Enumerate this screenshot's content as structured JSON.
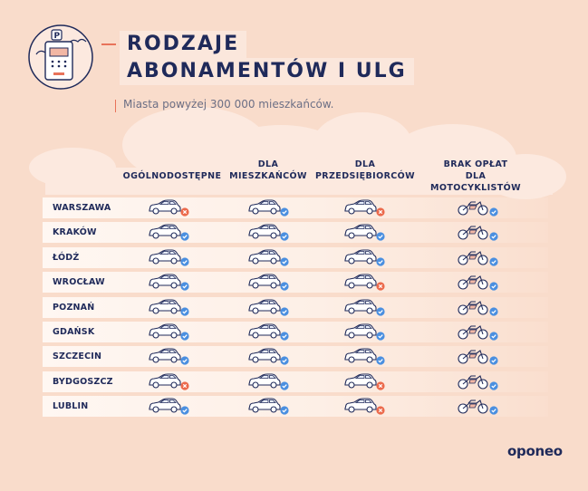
{
  "title": {
    "line1": "RODZAJE",
    "line2": "ABONAMENTÓW I ULG"
  },
  "subtitle": "Miasta powyżej 300 000 mieszkańców.",
  "columns": [
    {
      "line1": "OGÓLNODOSTĘPNE",
      "line2": ""
    },
    {
      "line1": "DLA",
      "line2": "MIESZKAŃCÓW"
    },
    {
      "line1": "DLA",
      "line2": "PRZEDSIĘBIORCÓW"
    },
    {
      "line1": "BRAK OPŁAT",
      "line2": "DLA MOTOCYKLISTÓW"
    }
  ],
  "rows": [
    {
      "city": "WARSZAWA",
      "values": [
        false,
        true,
        false,
        true
      ]
    },
    {
      "city": "KRAKÓW",
      "values": [
        true,
        true,
        true,
        true
      ]
    },
    {
      "city": "ŁÓDŹ",
      "values": [
        true,
        true,
        true,
        true
      ]
    },
    {
      "city": "WROCŁAW",
      "values": [
        true,
        true,
        false,
        true
      ]
    },
    {
      "city": "POZNAŃ",
      "values": [
        true,
        true,
        true,
        true
      ]
    },
    {
      "city": "GDAŃSK",
      "values": [
        true,
        true,
        true,
        true
      ]
    },
    {
      "city": "SZCZECIN",
      "values": [
        true,
        true,
        true,
        true
      ]
    },
    {
      "city": "BYDGOSZCZ",
      "values": [
        false,
        true,
        false,
        true
      ]
    },
    {
      "city": "LUBLIN",
      "values": [
        true,
        true,
        false,
        true
      ]
    }
  ],
  "logo": "oponeo",
  "colors": {
    "check": "#4a8fe0",
    "cross": "#ec6a4c",
    "ink": "#1f2a5a",
    "background": "#f9dccb"
  },
  "icons": {
    "header": "parking-meter-icon",
    "col1": "car-icon",
    "col2": "car-icon",
    "col3": "car-icon",
    "col4": "motorcycle-icon"
  }
}
